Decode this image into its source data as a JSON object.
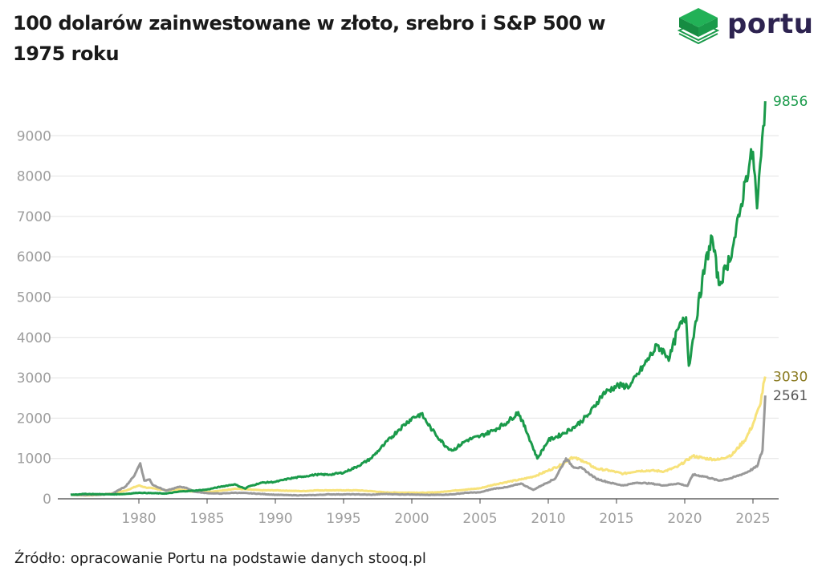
{
  "title": "100 dolarów zainwestowane w złoto, srebro i S&P 500 w 1975 roku",
  "logo": {
    "text": "portu",
    "icon": "portu-cube-icon",
    "color": "#2d2350",
    "icon_color": "#1a9a4a"
  },
  "source": "Źródło: opracowanie Portu na podstawie danych stooq.pl",
  "chart_data": {
    "type": "line",
    "xlim": [
      1975,
      2026.3
    ],
    "ylim": [
      0,
      10000
    ],
    "x_ticks": [
      1980,
      1985,
      1990,
      1995,
      2000,
      2005,
      2010,
      2015,
      2020,
      2025
    ],
    "x_tick_labels": [
      "1980",
      "1985",
      "1990",
      "1995",
      "2000",
      "2005",
      "2010",
      "2015",
      "2020",
      "2025"
    ],
    "y_ticks": [
      0,
      1000,
      2000,
      3000,
      4000,
      5000,
      6000,
      7000,
      8000,
      9000
    ],
    "y_tick_labels": [
      "0",
      "1000",
      "2000",
      "3000",
      "4000",
      "5000",
      "6000",
      "7000",
      "8000",
      "9000"
    ],
    "grid": "horizontal",
    "legend": "none",
    "series": [
      {
        "color": "#f7e27a",
        "end_label": "3030",
        "label_color": "#8a7a20",
        "points": [
          [
            1975.0,
            100
          ],
          [
            1976.0,
            85
          ],
          [
            1977.0,
            95
          ],
          [
            1978.0,
            130
          ],
          [
            1979.0,
            200
          ],
          [
            1980.0,
            330
          ],
          [
            1980.5,
            280
          ],
          [
            1981.0,
            260
          ],
          [
            1982.0,
            210
          ],
          [
            1983.0,
            230
          ],
          [
            1984.0,
            180
          ],
          [
            1985.0,
            170
          ],
          [
            1986.0,
            200
          ],
          [
            1987.0,
            250
          ],
          [
            1988.0,
            230
          ],
          [
            1989.0,
            210
          ],
          [
            1990.0,
            210
          ],
          [
            1991.0,
            200
          ],
          [
            1992.0,
            190
          ],
          [
            1993.0,
            210
          ],
          [
            1994.0,
            210
          ],
          [
            1995.0,
            210
          ],
          [
            1996.0,
            210
          ],
          [
            1997.0,
            190
          ],
          [
            1998.0,
            160
          ],
          [
            1999.0,
            155
          ],
          [
            2000.0,
            155
          ],
          [
            2001.0,
            150
          ],
          [
            2002.0,
            165
          ],
          [
            2003.0,
            200
          ],
          [
            2004.0,
            230
          ],
          [
            2005.0,
            260
          ],
          [
            2006.0,
            350
          ],
          [
            2007.0,
            420
          ],
          [
            2008.0,
            480
          ],
          [
            2009.0,
            560
          ],
          [
            2010.0,
            700
          ],
          [
            2011.0,
            850
          ],
          [
            2011.7,
            1030
          ],
          [
            2012.5,
            950
          ],
          [
            2013.5,
            750
          ],
          [
            2014.5,
            700
          ],
          [
            2015.5,
            620
          ],
          [
            2016.5,
            690
          ],
          [
            2017.5,
            700
          ],
          [
            2018.5,
            680
          ],
          [
            2019.5,
            800
          ],
          [
            2020.6,
            1060
          ],
          [
            2021.5,
            1000
          ],
          [
            2022.5,
            970
          ],
          [
            2023.5,
            1100
          ],
          [
            2024.5,
            1500
          ],
          [
            2025.0,
            1850
          ],
          [
            2025.5,
            2300
          ],
          [
            2025.9,
            3030
          ]
        ]
      },
      {
        "color": "#999999",
        "end_label": "2561",
        "label_color": "#555555",
        "points": [
          [
            1975.0,
            100
          ],
          [
            1976.0,
            95
          ],
          [
            1977.0,
            100
          ],
          [
            1978.0,
            120
          ],
          [
            1979.0,
            300
          ],
          [
            1979.6,
            540
          ],
          [
            1980.1,
            880
          ],
          [
            1980.4,
            450
          ],
          [
            1980.8,
            480
          ],
          [
            1981.0,
            350
          ],
          [
            1982.0,
            200
          ],
          [
            1983.0,
            300
          ],
          [
            1983.5,
            270
          ],
          [
            1984.0,
            180
          ],
          [
            1985.0,
            140
          ],
          [
            1986.0,
            130
          ],
          [
            1987.0,
            150
          ],
          [
            1988.0,
            140
          ],
          [
            1989.0,
            120
          ],
          [
            1990.0,
            100
          ],
          [
            1991.0,
            90
          ],
          [
            1992.0,
            85
          ],
          [
            1993.0,
            95
          ],
          [
            1994.0,
            110
          ],
          [
            1995.0,
            110
          ],
          [
            1996.0,
            110
          ],
          [
            1997.0,
            100
          ],
          [
            1998.0,
            120
          ],
          [
            1999.0,
            110
          ],
          [
            2000.0,
            110
          ],
          [
            2001.0,
            95
          ],
          [
            2002.0,
            100
          ],
          [
            2003.0,
            110
          ],
          [
            2004.0,
            150
          ],
          [
            2005.0,
            160
          ],
          [
            2006.0,
            250
          ],
          [
            2007.0,
            290
          ],
          [
            2008.0,
            380
          ],
          [
            2008.9,
            220
          ],
          [
            2009.5,
            330
          ],
          [
            2010.5,
            500
          ],
          [
            2011.3,
            1000
          ],
          [
            2011.8,
            800
          ],
          [
            2012.5,
            750
          ],
          [
            2013.5,
            500
          ],
          [
            2014.5,
            400
          ],
          [
            2015.5,
            330
          ],
          [
            2016.5,
            400
          ],
          [
            2017.5,
            380
          ],
          [
            2018.5,
            330
          ],
          [
            2019.5,
            380
          ],
          [
            2020.2,
            320
          ],
          [
            2020.6,
            600
          ],
          [
            2021.5,
            550
          ],
          [
            2022.5,
            450
          ],
          [
            2023.5,
            520
          ],
          [
            2024.5,
            650
          ],
          [
            2025.3,
            800
          ],
          [
            2025.7,
            1200
          ],
          [
            2025.9,
            2561
          ]
        ]
      },
      {
        "color": "#1a9a4a",
        "end_label": "9856",
        "label_color": "#1a9a4a",
        "points": [
          [
            1975.0,
            100
          ],
          [
            1976.0,
            120
          ],
          [
            1977.0,
            115
          ],
          [
            1978.0,
            110
          ],
          [
            1979.0,
            120
          ],
          [
            1980.0,
            150
          ],
          [
            1981.0,
            140
          ],
          [
            1982.0,
            130
          ],
          [
            1983.0,
            180
          ],
          [
            1984.0,
            200
          ],
          [
            1985.0,
            230
          ],
          [
            1986.0,
            300
          ],
          [
            1987.0,
            360
          ],
          [
            1987.8,
            250
          ],
          [
            1988.0,
            300
          ],
          [
            1989.0,
            400
          ],
          [
            1990.0,
            420
          ],
          [
            1991.0,
            500
          ],
          [
            1992.0,
            550
          ],
          [
            1993.0,
            600
          ],
          [
            1994.0,
            600
          ],
          [
            1995.0,
            650
          ],
          [
            1996.0,
            800
          ],
          [
            1997.0,
            1000
          ],
          [
            1998.0,
            1350
          ],
          [
            1999.0,
            1700
          ],
          [
            2000.0,
            2000
          ],
          [
            2000.7,
            2100
          ],
          [
            2001.5,
            1700
          ],
          [
            2002.5,
            1300
          ],
          [
            2003.0,
            1200
          ],
          [
            2004.0,
            1450
          ],
          [
            2005.0,
            1550
          ],
          [
            2006.0,
            1700
          ],
          [
            2007.0,
            1900
          ],
          [
            2007.8,
            2150
          ],
          [
            2008.5,
            1600
          ],
          [
            2009.2,
            1000
          ],
          [
            2010.0,
            1450
          ],
          [
            2011.0,
            1600
          ],
          [
            2012.0,
            1800
          ],
          [
            2013.0,
            2100
          ],
          [
            2014.0,
            2600
          ],
          [
            2015.0,
            2800
          ],
          [
            2016.0,
            2800
          ],
          [
            2017.0,
            3300
          ],
          [
            2018.0,
            3800
          ],
          [
            2018.9,
            3500
          ],
          [
            2019.5,
            4200
          ],
          [
            2020.1,
            4500
          ],
          [
            2020.3,
            3300
          ],
          [
            2020.8,
            4400
          ],
          [
            2021.5,
            5800
          ],
          [
            2022.0,
            6500
          ],
          [
            2022.5,
            5300
          ],
          [
            2023.0,
            5700
          ],
          [
            2023.5,
            6200
          ],
          [
            2024.0,
            7000
          ],
          [
            2024.5,
            8000
          ],
          [
            2025.0,
            8600
          ],
          [
            2025.3,
            7200
          ],
          [
            2025.6,
            8500
          ],
          [
            2025.9,
            9856
          ]
        ]
      }
    ]
  }
}
